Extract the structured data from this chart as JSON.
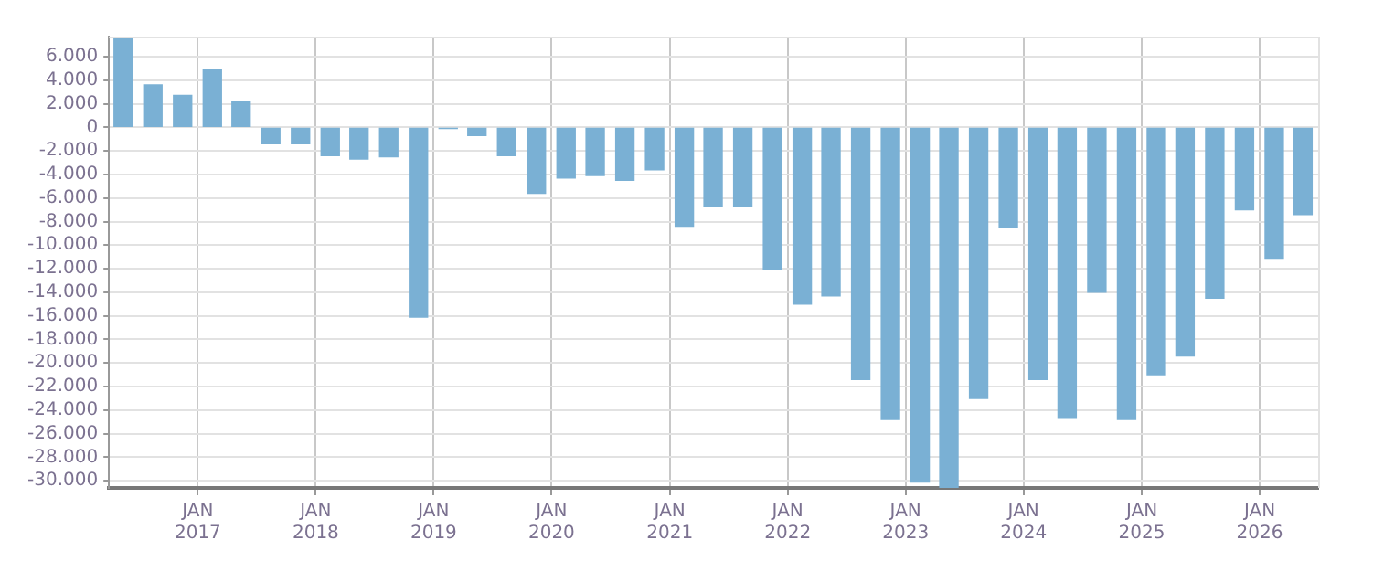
{
  "chart_data": {
    "type": "bar",
    "x": [
      "2016-05-15",
      "2016-08-15",
      "2016-11-15",
      "2017-02-15",
      "2017-05-15",
      "2017-08-15",
      "2017-11-15",
      "2018-02-15",
      "2018-05-15",
      "2018-08-15",
      "2018-11-15",
      "2019-02-15",
      "2019-05-15",
      "2019-08-15",
      "2019-11-15",
      "2020-02-15",
      "2020-05-15",
      "2020-08-15",
      "2020-11-15",
      "2021-02-15",
      "2021-05-15",
      "2021-08-15",
      "2021-11-15",
      "2022-02-15",
      "2022-05-15",
      "2022-08-15",
      "2022-11-15",
      "2023-02-15",
      "2023-05-15",
      "2023-08-15",
      "2023-11-15",
      "2024-02-15",
      "2024-05-15",
      "2024-08-15",
      "2024-11-15",
      "2025-02-15",
      "2025-05-15",
      "2025-08-15",
      "2025-11-15",
      "2026-02-15",
      "2026-05-15"
    ],
    "values": [
      7600,
      3600,
      2700,
      4900,
      2200,
      -1400,
      -1400,
      -2400,
      -2700,
      -2500,
      -16100,
      -100,
      -700,
      -2400,
      -5600,
      -4300,
      -4100,
      -4500,
      -3600,
      -8400,
      -6700,
      -6700,
      -12100,
      -15000,
      -14300,
      -21400,
      -24800,
      -30100,
      -30600,
      -23000,
      -8500,
      -21400,
      -24700,
      -14000,
      -24800,
      -21000,
      -19400,
      -14500,
      -7000,
      -11100,
      -7400
    ],
    "color": "#7ab0d4",
    "xlim": [
      "2016-04-01",
      "2026-07-01"
    ],
    "xticks": [
      {
        "value": "2017-01-01",
        "label": "JAN 2017"
      },
      {
        "value": "2018-01-01",
        "label": "JAN 2018"
      },
      {
        "value": "2019-01-01",
        "label": "JAN 2019"
      },
      {
        "value": "2020-01-01",
        "label": "JAN 2020"
      },
      {
        "value": "2021-01-01",
        "label": "JAN 2021"
      },
      {
        "value": "2022-01-01",
        "label": "JAN 2022"
      },
      {
        "value": "2023-01-01",
        "label": "JAN 2023"
      },
      {
        "value": "2024-01-01",
        "label": "JAN 2024"
      },
      {
        "value": "2025-01-01",
        "label": "JAN 2025"
      },
      {
        "value": "2026-01-01",
        "label": "JAN 2026"
      }
    ],
    "ylim": [
      -30600,
      7700
    ],
    "yticks": [
      {
        "value": 6000,
        "label": "6.000"
      },
      {
        "value": 4000,
        "label": "4.000"
      },
      {
        "value": 2000,
        "label": "2.000"
      },
      0,
      {
        "value": -2000,
        "label": "-2.000"
      },
      {
        "value": -4000,
        "label": "-4.000"
      },
      {
        "value": -6000,
        "label": "-6.000"
      },
      {
        "value": -8000,
        "label": "-8.000"
      },
      {
        "value": -10000,
        "label": "-10.000"
      },
      {
        "value": -12000,
        "label": "-12.000"
      },
      {
        "value": -14000,
        "label": "-14.000"
      },
      {
        "value": -16000,
        "label": "-16.000"
      },
      {
        "value": -18000,
        "label": "-18.000"
      },
      {
        "value": -20000,
        "label": "-20.000"
      },
      {
        "value": -22000,
        "label": "-22.000"
      },
      {
        "value": -24000,
        "label": "-24.000"
      },
      {
        "value": -26000,
        "label": "-26.000"
      },
      {
        "value": -28000,
        "label": "-28.000"
      },
      {
        "value": -30000,
        "label": "-30.000"
      }
    ],
    "grid": true
  }
}
